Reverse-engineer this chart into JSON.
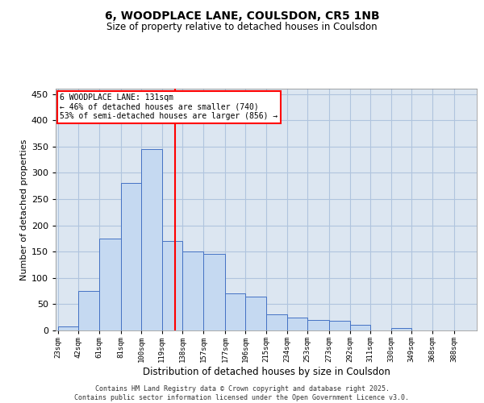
{
  "title_line1": "6, WOODPLACE LANE, COULSDON, CR5 1NB",
  "title_line2": "Size of property relative to detached houses in Coulsdon",
  "xlabel": "Distribution of detached houses by size in Coulsdon",
  "ylabel": "Number of detached properties",
  "footer": "Contains HM Land Registry data © Crown copyright and database right 2025.\nContains public sector information licensed under the Open Government Licence v3.0.",
  "annotation_line1": "6 WOODPLACE LANE: 131sqm",
  "annotation_line2": "← 46% of detached houses are smaller (740)",
  "annotation_line3": "53% of semi-detached houses are larger (856) →",
  "vline_x": 131,
  "bar_edges": [
    23,
    42,
    61,
    81,
    100,
    119,
    138,
    157,
    177,
    196,
    215,
    234,
    253,
    273,
    292,
    311,
    330,
    349,
    368,
    388,
    407
  ],
  "bar_heights": [
    8,
    75,
    175,
    280,
    345,
    170,
    150,
    145,
    70,
    65,
    30,
    25,
    20,
    18,
    10,
    0,
    5,
    0,
    0,
    0
  ],
  "bar_fill_color": "#c5d9f1",
  "bar_edge_color": "#4472c4",
  "vline_color": "red",
  "grid_color": "#b0c4de",
  "bg_color": "#dce6f1",
  "annotation_box_color": "white",
  "annotation_box_edge": "red",
  "ylim": [
    0,
    460
  ],
  "yticks": [
    0,
    50,
    100,
    150,
    200,
    250,
    300,
    350,
    400,
    450
  ]
}
